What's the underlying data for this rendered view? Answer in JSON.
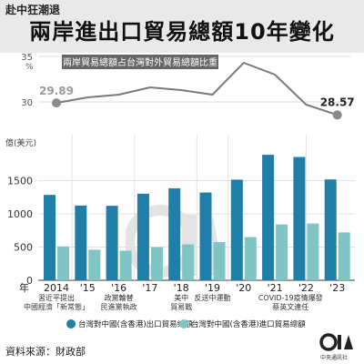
{
  "header": {
    "tag": "赴中狂潮退",
    "title": "兩岸進出口貿易總額10年變化"
  },
  "source": "資料來源：財政部",
  "logo": {
    "text": "CNA",
    "subtitle": "中央通訊社"
  },
  "colors": {
    "export": "#1f7fa8",
    "import": "#7fc5c4",
    "line": "#7a7a7a",
    "annotation_bg": "#666666"
  },
  "chart_data": [
    {
      "type": "line",
      "annotation": "兩岸貿易總額占台灣對外貿易總額比重",
      "x": [
        "2014",
        "'15",
        "'16",
        "'17",
        "'18",
        "'19",
        "'20",
        "'21",
        "'22",
        "'23"
      ],
      "values": [
        29.89,
        30.5,
        30.8,
        31.6,
        31.3,
        30.8,
        34.3,
        33.0,
        29.7,
        28.57
      ],
      "labeled_points": [
        {
          "index": 0,
          "label": "29.89"
        },
        {
          "index": 9,
          "label": "28.57"
        }
      ],
      "yunit": "%",
      "ytick_labels": [
        "35",
        "30"
      ],
      "ylim": [
        29,
        35
      ]
    },
    {
      "type": "bar",
      "ylabel": "億(美元)",
      "categories": [
        "2014",
        "'15",
        "'16",
        "'17",
        "'18",
        "'19",
        "'20",
        "'21",
        "'22",
        "'23"
      ],
      "xunit": "年",
      "series": [
        {
          "name": "台灣對中國(含香港)出口貿易總額",
          "values": [
            1285,
            1125,
            1121,
            1303,
            1384,
            1321,
            1515,
            1889,
            1856,
            1518
          ]
        },
        {
          "name": "台灣對中國(含香港)進口貿易總額",
          "values": [
            510,
            460,
            445,
            500,
            540,
            575,
            650,
            840,
            855,
            720
          ]
        }
      ],
      "ytick_labels": [
        "0",
        "500",
        "1000",
        "1500"
      ],
      "ylim": [
        0,
        2000
      ],
      "grid": true,
      "legend_placement": "bottom",
      "annotations": [
        {
          "index": 0,
          "text": "習近平提出\n中國經濟「新常態」"
        },
        {
          "index": 2,
          "text": "政黨輪替\n民進黨執政"
        },
        {
          "index": 4,
          "text": "美中\n貿易戰"
        },
        {
          "index": 5,
          "text": "反送中運動"
        },
        {
          "index": 7.5,
          "text": "COVID-19疫情爆發\n蔡英文連任"
        }
      ]
    }
  ]
}
